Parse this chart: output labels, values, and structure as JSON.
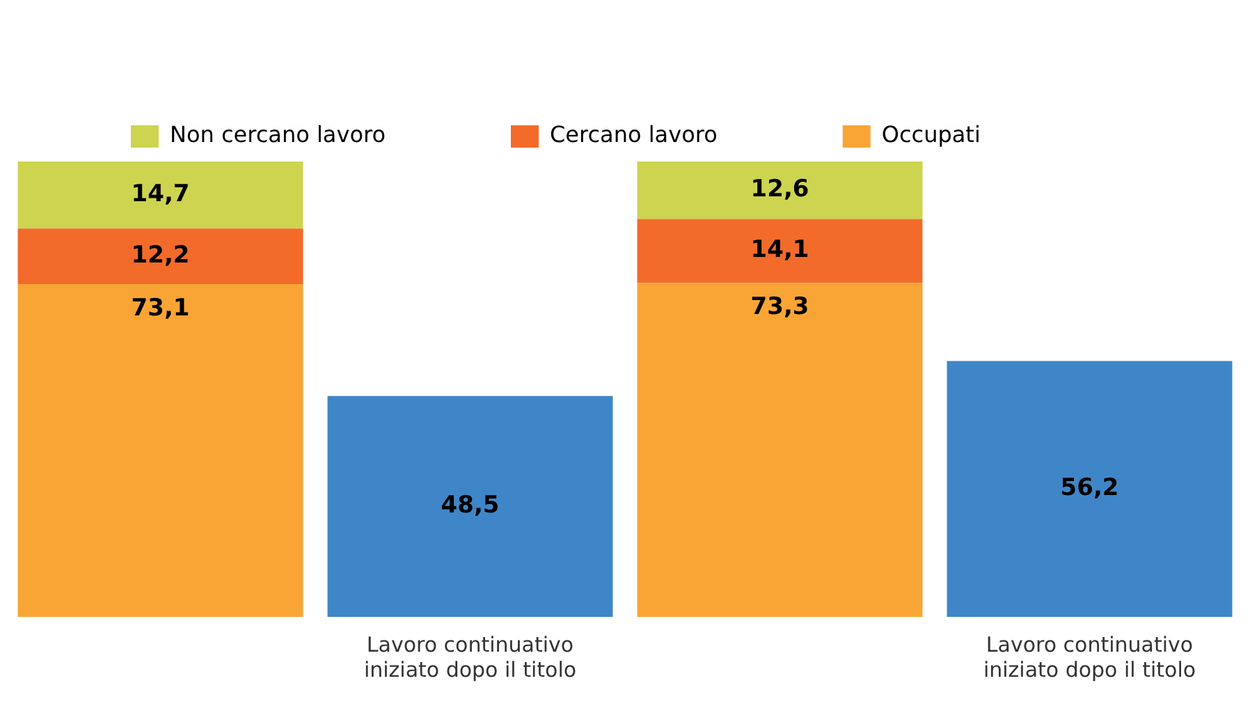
{
  "chart_data": {
    "type": "bar",
    "stacked": true,
    "legend": "top",
    "grid": false,
    "tick_labels": "x",
    "categories": [
      null,
      "Lavoro continuativo iniziato dopo il titolo",
      null,
      "Lavoro continuativo iniziato dopo il titolo"
    ],
    "series": [
      {
        "name": "Occupati",
        "color": "#f9a535",
        "values": [
          73.1,
          null,
          73.3,
          null
        ],
        "value_labels": [
          "73,1",
          null,
          "73,3",
          null
        ]
      },
      {
        "name": "Cercano lavoro",
        "color": "#f26b2b",
        "values": [
          12.2,
          null,
          14.1,
          null
        ],
        "value_labels": [
          "12,2",
          null,
          "14,1",
          null
        ]
      },
      {
        "name": "Non cercano lavoro",
        "color": "#cdd44f",
        "values": [
          14.7,
          null,
          12.6,
          null
        ],
        "value_labels": [
          "14,7",
          null,
          "12,6",
          null
        ]
      },
      {
        "color": "#3f86c8",
        "values": [
          null,
          48.5,
          null,
          56.2
        ],
        "value_labels": [
          null,
          "48,5",
          null,
          "56,2"
        ]
      }
    ]
  }
}
